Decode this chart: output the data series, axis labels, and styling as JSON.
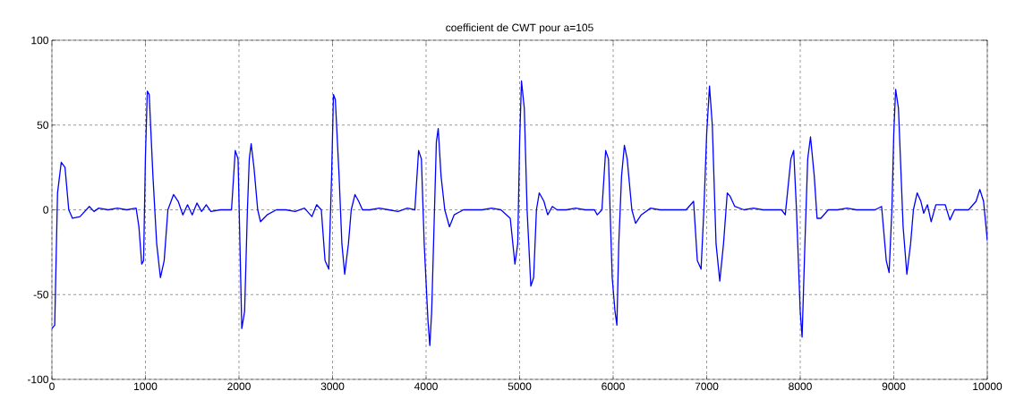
{
  "chart_data": {
    "type": "line",
    "title": "coefficient de CWT pour a=105",
    "x": [
      0,
      30,
      60,
      100,
      140,
      180,
      220,
      300,
      400,
      450,
      500,
      600,
      700,
      800,
      900,
      930,
      960,
      980,
      1000,
      1020,
      1040,
      1080,
      1120,
      1160,
      1200,
      1240,
      1300,
      1350,
      1400,
      1450,
      1500,
      1550,
      1600,
      1650,
      1700,
      1800,
      1920,
      1960,
      1990,
      2010,
      2030,
      2060,
      2090,
      2110,
      2130,
      2160,
      2200,
      2230,
      2300,
      2400,
      2500,
      2600,
      2700,
      2780,
      2830,
      2880,
      2920,
      2960,
      2990,
      3010,
      3030,
      3070,
      3100,
      3130,
      3170,
      3200,
      3240,
      3280,
      3320,
      3400,
      3500,
      3600,
      3700,
      3800,
      3880,
      3920,
      3950,
      3980,
      4020,
      4040,
      4060,
      4090,
      4110,
      4130,
      4160,
      4200,
      4250,
      4300,
      4400,
      4500,
      4600,
      4700,
      4800,
      4900,
      4950,
      4980,
      5000,
      5020,
      5050,
      5080,
      5120,
      5150,
      5180,
      5210,
      5260,
      5300,
      5350,
      5400,
      5500,
      5600,
      5700,
      5800,
      5830,
      5880,
      5920,
      5950,
      5990,
      6020,
      6040,
      6060,
      6090,
      6120,
      6150,
      6200,
      6240,
      6300,
      6400,
      6500,
      6600,
      6700,
      6780,
      6860,
      6900,
      6940,
      6970,
      7000,
      7030,
      7060,
      7100,
      7140,
      7180,
      7220,
      7250,
      7300,
      7400,
      7500,
      7600,
      7700,
      7800,
      7840,
      7900,
      7930,
      7960,
      8000,
      8020,
      8050,
      8080,
      8110,
      8150,
      8180,
      8220,
      8300,
      8400,
      8500,
      8600,
      8700,
      8800,
      8870,
      8920,
      8950,
      8980,
      9000,
      9020,
      9050,
      9100,
      9140,
      9180,
      9210,
      9250,
      9290,
      9320,
      9360,
      9400,
      9450,
      9500,
      9550,
      9600,
      9650,
      9700,
      9800,
      9880,
      9920,
      9960,
      10000
    ],
    "values": [
      -70,
      -68,
      10,
      28,
      25,
      0,
      -5,
      -4,
      2,
      -1,
      1,
      0,
      1,
      0,
      1,
      -10,
      -32,
      -30,
      32,
      70,
      68,
      20,
      -20,
      -40,
      -30,
      0,
      9,
      5,
      -3,
      3,
      -3,
      4,
      -1,
      3,
      -1,
      0,
      0,
      35,
      30,
      -20,
      -70,
      -60,
      0,
      30,
      39,
      25,
      0,
      -7,
      -3,
      0,
      0,
      -1,
      1,
      -4,
      3,
      0,
      -30,
      -35,
      20,
      68,
      65,
      20,
      -20,
      -38,
      -20,
      0,
      9,
      5,
      0,
      0,
      1,
      0,
      -1,
      1,
      0,
      35,
      30,
      -20,
      -65,
      -80,
      -60,
      0,
      40,
      48,
      20,
      0,
      -10,
      -3,
      0,
      0,
      0,
      1,
      0,
      -5,
      -32,
      -20,
      40,
      76,
      60,
      0,
      -45,
      -40,
      0,
      10,
      5,
      -3,
      2,
      0,
      0,
      1,
      0,
      0,
      -3,
      0,
      35,
      30,
      -40,
      -60,
      -68,
      -20,
      20,
      38,
      30,
      0,
      -8,
      -3,
      1,
      0,
      0,
      0,
      0,
      5,
      -30,
      -35,
      0,
      45,
      73,
      50,
      -20,
      -42,
      -20,
      10,
      8,
      2,
      0,
      1,
      0,
      0,
      0,
      -3,
      30,
      35,
      0,
      -60,
      -75,
      -20,
      30,
      43,
      20,
      -5,
      -5,
      0,
      0,
      1,
      0,
      0,
      0,
      2,
      -30,
      -37,
      0,
      45,
      71,
      60,
      -10,
      -38,
      -20,
      0,
      10,
      5,
      -2,
      3,
      -7,
      3,
      3,
      3,
      -6,
      0,
      0,
      0,
      5,
      12,
      5,
      -18
    ],
    "color": "#0000ff",
    "xlim": [
      0,
      10000
    ],
    "ylim": [
      -100,
      100
    ],
    "xticks": [
      0,
      1000,
      2000,
      3000,
      4000,
      5000,
      6000,
      7000,
      8000,
      9000,
      10000
    ],
    "yticks": [
      -100,
      -50,
      0,
      50,
      100
    ],
    "grid": true
  }
}
